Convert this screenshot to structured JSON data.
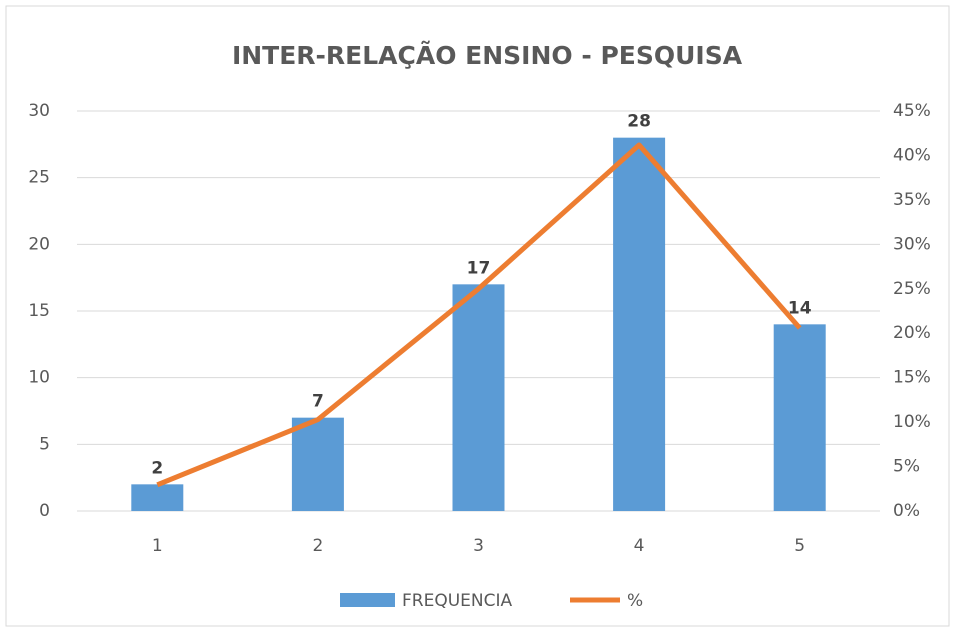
{
  "chart_data": {
    "type": "bar",
    "title": "INTER-RELAÇÃO ENSINO - PESQUISA",
    "categories": [
      "1",
      "2",
      "3",
      "4",
      "5"
    ],
    "series": [
      {
        "name": "FREQUENCIA",
        "type": "bar",
        "color": "#5b9bd5",
        "values": [
          2,
          7,
          17,
          28,
          14
        ]
      },
      {
        "name": "%",
        "type": "line",
        "axis": "y2",
        "color": "#ed7d31",
        "values": [
          2.94,
          10.29,
          25,
          41.18,
          20.59
        ]
      }
    ],
    "ylim": [
      0,
      30
    ],
    "yticks": [
      0,
      5,
      10,
      15,
      20,
      25,
      30
    ],
    "y2lim": [
      0,
      45
    ],
    "y2ticks": [
      {
        "value": 0,
        "label": "0%"
      },
      {
        "value": 5,
        "label": "5%"
      },
      {
        "value": 10,
        "label": "10%"
      },
      {
        "value": 15,
        "label": "15%"
      },
      {
        "value": 20,
        "label": "20%"
      },
      {
        "value": 25,
        "label": "25%"
      },
      {
        "value": 30,
        "label": "30%"
      },
      {
        "value": 35,
        "label": "35%"
      },
      {
        "value": 40,
        "label": "40%"
      },
      {
        "value": 45,
        "label": "45%"
      }
    ],
    "grid": true,
    "legend": "bottom"
  }
}
